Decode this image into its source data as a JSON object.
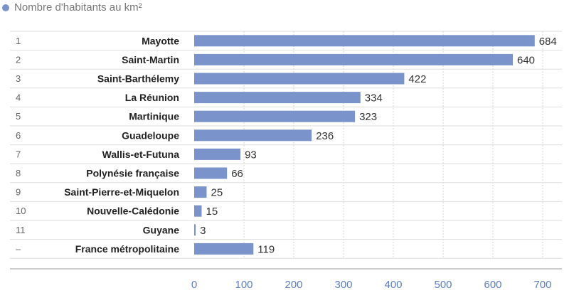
{
  "legend": {
    "label": "Nombre d'habitants au km²",
    "color": "#7b93cb"
  },
  "chart_data": {
    "type": "bar",
    "orientation": "horizontal",
    "ranks": [
      "1",
      "2",
      "3",
      "4",
      "5",
      "6",
      "7",
      "8",
      "9",
      "10",
      "11",
      "–"
    ],
    "categories": [
      "Mayotte",
      "Saint-Martin",
      "Saint-Barthélemy",
      "La Réunion",
      "Martinique",
      "Guadeloupe",
      "Wallis-et-Futuna",
      "Polynésie française",
      "Saint-Pierre-et-Miquelon",
      "Nouvelle-Calédonie",
      "Guyane",
      "France métropolitaine"
    ],
    "series": [
      {
        "name": "Nombre d'habitants au km²",
        "values": [
          684,
          640,
          422,
          334,
          323,
          236,
          93,
          66,
          25,
          15,
          3,
          119
        ]
      }
    ],
    "xlim": [
      0,
      700
    ],
    "xticks": [
      0,
      100,
      200,
      300,
      400,
      500,
      600,
      700
    ],
    "grid": true,
    "legend_position": "top-left",
    "colors": {
      "bar": "#7b93cb",
      "axis_tick": "#5f7fc4",
      "grid": "#d6d6d6",
      "row_line": "#dddddd",
      "baseline": "#9a9a9a",
      "label": "#222222",
      "rank": "#666666",
      "value": "#333333"
    }
  }
}
